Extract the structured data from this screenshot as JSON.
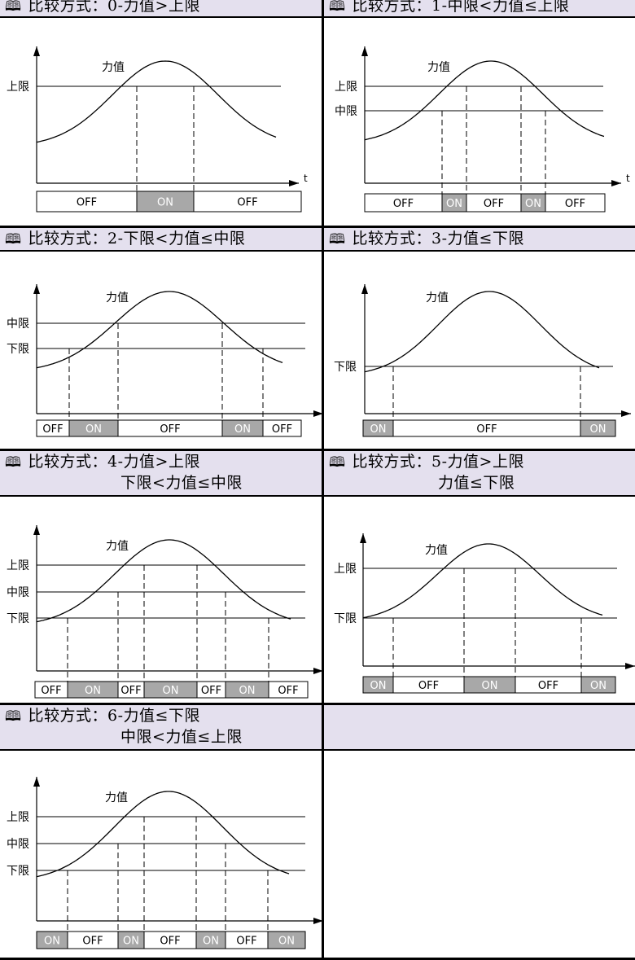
{
  "labels": {
    "force": "力值",
    "upper": "上限",
    "middle": "中限",
    "lower": "下限",
    "time": "t",
    "on": "ON",
    "off": "OFF"
  },
  "panels": [
    {
      "title": "比较方式：0-力值>上限",
      "title2": "",
      "limits": [
        "upper"
      ],
      "states": [
        "OFF",
        "ON",
        "OFF"
      ]
    },
    {
      "title": "比较方式：1-中限<力值≤上限",
      "title2": "",
      "limits": [
        "upper",
        "middle"
      ],
      "states": [
        "OFF",
        "ON",
        "OFF",
        "ON",
        "OFF"
      ]
    },
    {
      "title": "比较方式：2-下限<力值≤中限",
      "title2": "",
      "limits": [
        "middle",
        "lower"
      ],
      "states": [
        "OFF",
        "ON",
        "OFF",
        "ON",
        "OFF"
      ]
    },
    {
      "title": "比较方式：3-力值≤下限",
      "title2": "",
      "limits": [
        "lower"
      ],
      "states": [
        "ON",
        "OFF",
        "ON"
      ]
    },
    {
      "title": "比较方式：4-力值>上限",
      "title2": "下限<力值≤中限",
      "limits": [
        "upper",
        "middle",
        "lower"
      ],
      "states": [
        "OFF",
        "ON",
        "OFF",
        "ON",
        "OFF",
        "ON",
        "OFF"
      ]
    },
    {
      "title": "比较方式：5-力值>上限",
      "title2": "力值≤下限",
      "limits": [
        "upper",
        "lower"
      ],
      "states": [
        "ON",
        "OFF",
        "ON",
        "OFF",
        "ON"
      ]
    },
    {
      "title": "比较方式：6-力值≤下限",
      "title2": "中限<力值≤上限",
      "limits": [
        "upper",
        "middle",
        "lower"
      ],
      "states": [
        "ON",
        "OFF",
        "ON",
        "OFF",
        "ON",
        "OFF",
        "ON"
      ]
    }
  ],
  "colors": {
    "header_bg": "#e4e0ee",
    "on_fill": "#a8a8a8",
    "off_fill": "#ffffff",
    "line": "#000000"
  },
  "icons": {
    "header": "book-icon"
  }
}
